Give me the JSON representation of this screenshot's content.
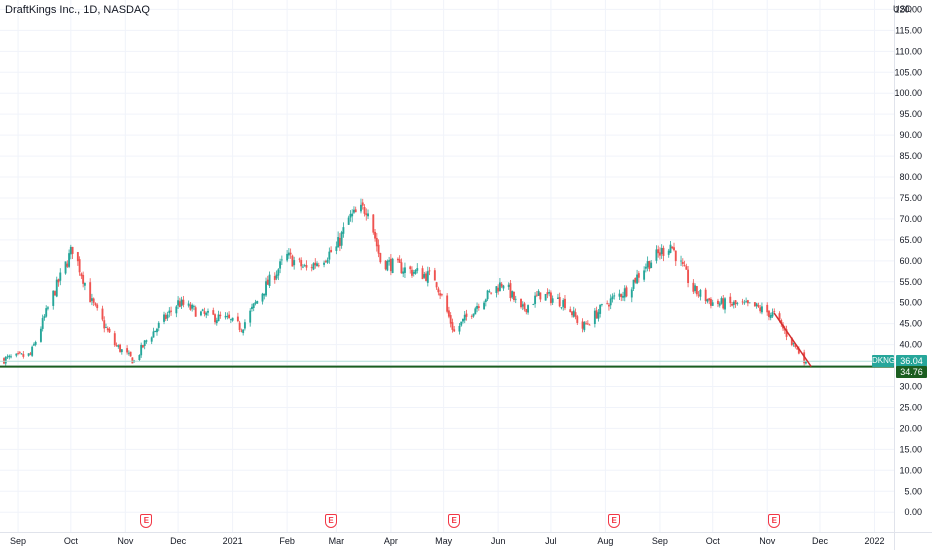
{
  "header": {
    "title": "DraftKings Inc., 1D, NASDAQ",
    "currency": "USD"
  },
  "colors": {
    "up": "#26a69a",
    "down": "#ef5350",
    "support_line": "#1b5e20",
    "trend_line": "#d32f2f",
    "earnings": "#f23645"
  },
  "markers": {
    "ticker": "DKNG",
    "last_price": "36.04",
    "support_price": "34.76",
    "earnings_icon": "earnings-icon",
    "earnings_label": "E"
  },
  "chart_data": {
    "type": "candlestick",
    "title": "DraftKings Inc., 1D, NASDAQ",
    "ylabel": "USD",
    "ylim": [
      -2,
      120
    ],
    "y_ticks": [
      "0.00",
      "5.00",
      "10.00",
      "15.00",
      "20.00",
      "25.00",
      "30.00",
      "35.00",
      "40.00",
      "45.00",
      "50.00",
      "55.00",
      "60.00",
      "65.00",
      "70.00",
      "75.00",
      "80.00",
      "85.00",
      "90.00",
      "95.00",
      "100.00",
      "105.00",
      "110.00",
      "115.00",
      "120.00"
    ],
    "x_ticks": [
      "Sep",
      "Oct",
      "Nov",
      "Dec",
      "2021",
      "Feb",
      "Mar",
      "Apr",
      "May",
      "Jun",
      "Jul",
      "Aug",
      "Sep",
      "Oct",
      "Nov",
      "Dec",
      "2022"
    ],
    "grid": true,
    "price_path": [
      {
        "date": "2020-08-24",
        "close": 36.5
      },
      {
        "date": "2020-09-08",
        "close": 37.5
      },
      {
        "date": "2020-09-21",
        "close": 52.0
      },
      {
        "date": "2020-10-02",
        "close": 63.0
      },
      {
        "date": "2020-10-13",
        "close": 50.0
      },
      {
        "date": "2020-10-26",
        "close": 40.0
      },
      {
        "date": "2020-11-06",
        "close": 36.0
      },
      {
        "date": "2020-11-13",
        "close": 41.0
      },
      {
        "date": "2020-12-01",
        "close": 50.0
      },
      {
        "date": "2020-12-16",
        "close": 47.0
      },
      {
        "date": "2020-12-29",
        "close": 46.0
      },
      {
        "date": "2021-01-06",
        "close": 44.0
      },
      {
        "date": "2021-01-20",
        "close": 54.0
      },
      {
        "date": "2021-02-01",
        "close": 61.0
      },
      {
        "date": "2021-02-12",
        "close": 58.0
      },
      {
        "date": "2021-03-01",
        "close": 63.0
      },
      {
        "date": "2021-03-08",
        "close": 70.0
      },
      {
        "date": "2021-03-19",
        "close": 73.0
      },
      {
        "date": "2021-03-26",
        "close": 60.0
      },
      {
        "date": "2021-04-09",
        "close": 58.0
      },
      {
        "date": "2021-04-26",
        "close": 56.0
      },
      {
        "date": "2021-05-07",
        "close": 43.0
      },
      {
        "date": "2021-05-21",
        "close": 50.0
      },
      {
        "date": "2021-06-04",
        "close": 55.0
      },
      {
        "date": "2021-06-14",
        "close": 48.0
      },
      {
        "date": "2021-06-25",
        "close": 52.0
      },
      {
        "date": "2021-07-09",
        "close": 50.0
      },
      {
        "date": "2021-07-19",
        "close": 44.0
      },
      {
        "date": "2021-08-02",
        "close": 50.0
      },
      {
        "date": "2021-08-13",
        "close": 53.0
      },
      {
        "date": "2021-08-24",
        "close": 59.0
      },
      {
        "date": "2021-09-07",
        "close": 64.0
      },
      {
        "date": "2021-09-20",
        "close": 53.0
      },
      {
        "date": "2021-10-01",
        "close": 50.0
      },
      {
        "date": "2021-10-25",
        "close": 49.0
      },
      {
        "date": "2021-11-05",
        "close": 47.0
      },
      {
        "date": "2021-11-16",
        "close": 40.0
      },
      {
        "date": "2021-11-23",
        "close": 36.0
      }
    ],
    "earnings_dates": [
      "2020-11-13",
      "2021-02-26",
      "2021-05-07",
      "2021-08-06",
      "2021-11-05"
    ],
    "support_level": 34.76,
    "last_price": 36.04,
    "trend_line": {
      "from": {
        "date": "2021-11-05",
        "price": 47.5
      },
      "to": {
        "date": "2021-11-26",
        "price": 34.76
      }
    }
  }
}
